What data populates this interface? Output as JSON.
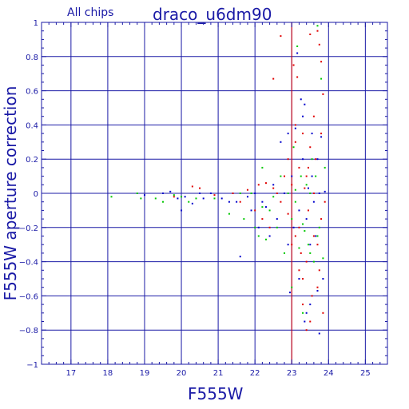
{
  "chart_data": {
    "type": "scatter",
    "title": "draco_u6dm90",
    "subtitle": "All chips",
    "xlabel": "F555W",
    "ylabel": "F555W aperture correction",
    "xlim": [
      16.2,
      25.6
    ],
    "ylim": [
      -1,
      1
    ],
    "x_ticks": [
      17,
      18,
      19,
      20,
      21,
      22,
      23,
      24,
      25
    ],
    "y_ticks": [
      -1,
      -0.8,
      -0.6,
      -0.4,
      -0.2,
      0,
      0.2,
      0.4,
      0.6,
      0.8,
      1
    ],
    "x_grid": [
      17,
      18,
      19,
      20,
      21,
      22,
      23,
      24,
      25
    ],
    "y_grid": [
      -0.8,
      -0.6,
      -0.4,
      -0.2,
      0,
      0.2,
      0.4,
      0.6,
      0.8
    ],
    "grid": true,
    "highlight_line": {
      "axis": "x",
      "value": 23,
      "color": "#e00000"
    },
    "colors": {
      "axis": "#1a1aa6",
      "grid": "#1a1aa6",
      "red": "#e00000",
      "green": "#00c800",
      "blue": "#0000cc"
    },
    "series": [
      {
        "color": "red",
        "points": [
          [
            19.5,
            0.0
          ],
          [
            19.8,
            -0.02
          ],
          [
            20.3,
            0.04
          ],
          [
            20.5,
            0.03
          ],
          [
            20.9,
            -0.01
          ],
          [
            21.4,
            0.0
          ],
          [
            21.6,
            -0.05
          ],
          [
            21.8,
            0.02
          ],
          [
            22.0,
            -0.1
          ],
          [
            22.1,
            0.05
          ],
          [
            22.2,
            -0.15
          ],
          [
            22.3,
            0.06
          ],
          [
            22.4,
            -0.2
          ],
          [
            22.5,
            0.67
          ],
          [
            22.6,
            0.0
          ],
          [
            22.7,
            0.92
          ],
          [
            22.7,
            -0.05
          ],
          [
            22.8,
            0.1
          ],
          [
            22.9,
            -0.12
          ],
          [
            22.9,
            0.2
          ],
          [
            23.0,
            0.05
          ],
          [
            23.0,
            -0.3
          ],
          [
            23.05,
            0.75
          ],
          [
            23.1,
            0.4
          ],
          [
            23.1,
            -0.25
          ],
          [
            23.15,
            0.68
          ],
          [
            23.2,
            -0.2
          ],
          [
            23.2,
            0.15
          ],
          [
            23.25,
            -0.35
          ],
          [
            23.3,
            0.35
          ],
          [
            23.3,
            -0.5
          ],
          [
            23.35,
            0.03
          ],
          [
            23.4,
            0.1
          ],
          [
            23.4,
            -0.4
          ],
          [
            23.45,
            -0.1
          ],
          [
            23.5,
            0.27
          ],
          [
            23.5,
            0.93
          ],
          [
            23.55,
            -0.6
          ],
          [
            23.6,
            0.0
          ],
          [
            23.6,
            -0.25
          ],
          [
            23.65,
            0.2
          ],
          [
            23.7,
            -0.3
          ],
          [
            23.7,
            0.95
          ],
          [
            23.75,
            0.87
          ],
          [
            23.75,
            -0.45
          ],
          [
            23.8,
            0.35
          ],
          [
            23.8,
            -0.15
          ],
          [
            23.85,
            0.58
          ],
          [
            23.85,
            -0.7
          ],
          [
            23.9,
            -0.05
          ],
          [
            23.4,
            -0.8
          ],
          [
            23.5,
            -0.75
          ],
          [
            23.3,
            -0.65
          ],
          [
            23.2,
            -0.45
          ],
          [
            23.6,
            0.45
          ],
          [
            23.8,
            0.77
          ],
          [
            23.1,
            0.3
          ],
          [
            22.5,
            0.03
          ],
          [
            23.7,
            -0.55
          ],
          [
            23.45,
            0.15
          ]
        ]
      },
      {
        "color": "green",
        "points": [
          [
            18.1,
            -0.02
          ],
          [
            18.8,
            0.0
          ],
          [
            18.9,
            -0.03
          ],
          [
            19.3,
            -0.03
          ],
          [
            19.5,
            -0.05
          ],
          [
            19.8,
            -0.01
          ],
          [
            20.0,
            -0.02
          ],
          [
            20.2,
            -0.05
          ],
          [
            20.4,
            -0.03
          ],
          [
            20.9,
            -0.03
          ],
          [
            21.3,
            -0.12
          ],
          [
            21.6,
            0.0
          ],
          [
            21.7,
            -0.15
          ],
          [
            21.9,
            0.0
          ],
          [
            22.0,
            -0.2
          ],
          [
            22.1,
            -0.25
          ],
          [
            22.2,
            0.15
          ],
          [
            22.2,
            -0.08
          ],
          [
            22.3,
            -0.27
          ],
          [
            22.4,
            -0.1
          ],
          [
            22.5,
            -0.02
          ],
          [
            22.6,
            -0.2
          ],
          [
            22.7,
            0.1
          ],
          [
            22.8,
            -0.35
          ],
          [
            22.9,
            0.0
          ],
          [
            23.0,
            -0.15
          ],
          [
            23.05,
            0.27
          ],
          [
            23.1,
            -0.05
          ],
          [
            23.1,
            0.02
          ],
          [
            23.15,
            0.86
          ],
          [
            23.2,
            -0.32
          ],
          [
            23.25,
            0.1
          ],
          [
            23.3,
            -0.18
          ],
          [
            23.35,
            -0.22
          ],
          [
            23.4,
            0.05
          ],
          [
            23.45,
            -0.3
          ],
          [
            23.5,
            0.0
          ],
          [
            23.55,
            0.2
          ],
          [
            23.6,
            -0.4
          ],
          [
            23.65,
            0.1
          ],
          [
            23.7,
            0.98
          ],
          [
            23.75,
            -0.2
          ],
          [
            23.8,
            0.67
          ],
          [
            23.85,
            -0.38
          ],
          [
            23.9,
            0.15
          ],
          [
            23.0,
            -0.55
          ],
          [
            23.3,
            -0.7
          ],
          [
            23.5,
            -0.35
          ],
          [
            23.7,
            -0.25
          ],
          [
            22.8,
            0.0
          ]
        ]
      },
      {
        "color": "blue",
        "points": [
          [
            19.0,
            -0.01
          ],
          [
            19.5,
            0.0
          ],
          [
            19.7,
            0.01
          ],
          [
            19.9,
            -0.03
          ],
          [
            20.0,
            -0.1
          ],
          [
            20.1,
            -0.02
          ],
          [
            20.3,
            -0.06
          ],
          [
            20.5,
            0.0
          ],
          [
            20.6,
            -0.03
          ],
          [
            20.8,
            0.0
          ],
          [
            21.1,
            -0.03
          ],
          [
            21.3,
            -0.05
          ],
          [
            21.5,
            -0.05
          ],
          [
            21.6,
            -0.37
          ],
          [
            21.8,
            -0.02
          ],
          [
            21.9,
            -0.1
          ],
          [
            22.0,
            0.0
          ],
          [
            22.1,
            -0.2
          ],
          [
            22.2,
            -0.05
          ],
          [
            22.3,
            -0.08
          ],
          [
            22.4,
            -0.25
          ],
          [
            22.5,
            0.05
          ],
          [
            22.6,
            -0.15
          ],
          [
            22.7,
            0.3
          ],
          [
            22.8,
            0.0
          ],
          [
            22.9,
            0.35
          ],
          [
            22.95,
            -0.58
          ],
          [
            23.0,
            0.1
          ],
          [
            23.05,
            -0.2
          ],
          [
            23.1,
            0.38
          ],
          [
            23.15,
            0.82
          ],
          [
            23.2,
            -0.1
          ],
          [
            23.25,
            0.55
          ],
          [
            23.3,
            0.2
          ],
          [
            23.35,
            0.52
          ],
          [
            23.4,
            -0.15
          ],
          [
            23.45,
            0.03
          ],
          [
            23.5,
            -0.3
          ],
          [
            23.55,
            0.1
          ],
          [
            23.6,
            -0.05
          ],
          [
            23.65,
            -0.25
          ],
          [
            23.7,
            0.2
          ],
          [
            23.75,
            0.0
          ],
          [
            23.8,
            0.33
          ],
          [
            23.85,
            -0.5
          ],
          [
            23.9,
            0.01
          ],
          [
            23.35,
            -0.75
          ],
          [
            23.4,
            -0.7
          ],
          [
            23.5,
            -0.65
          ],
          [
            23.7,
            -0.57
          ],
          [
            23.75,
            -0.82
          ],
          [
            23.2,
            -0.5
          ],
          [
            23.55,
            0.35
          ],
          [
            23.3,
            0.45
          ],
          [
            22.9,
            -0.3
          ]
        ]
      }
    ]
  }
}
